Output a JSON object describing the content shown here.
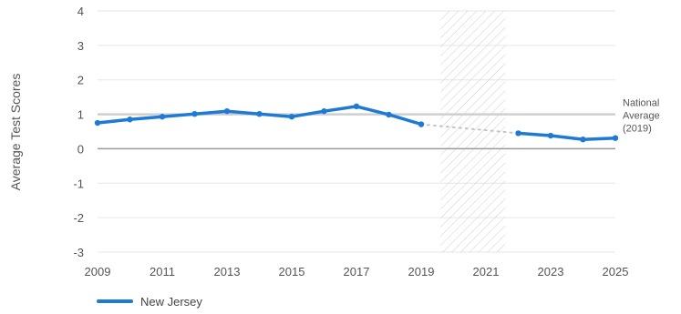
{
  "chart_data": {
    "type": "line",
    "ylabel": "Average Test Scores",
    "xlabel": "",
    "xlim": [
      2009,
      2025
    ],
    "ylim": [
      -3,
      4
    ],
    "x_ticks": [
      "2009",
      "2011",
      "2013",
      "2015",
      "2017",
      "2019",
      "2021",
      "2023",
      "2025"
    ],
    "y_ticks": [
      "4",
      "3",
      "2",
      "1",
      "0",
      "-1",
      "-2",
      "-3"
    ],
    "grid": true,
    "hatched_region": [
      2019.6,
      2021.6
    ],
    "reference_line": {
      "value": 1.0,
      "label_lines": [
        "National",
        "Average",
        "(2019)"
      ]
    },
    "series": [
      {
        "name": "New Jersey",
        "color": "#1f7ad6",
        "points": [
          {
            "x": 2009,
            "y": 0.75
          },
          {
            "x": 2010,
            "y": 0.85
          },
          {
            "x": 2011,
            "y": 0.93
          },
          {
            "x": 2012,
            "y": 1.01
          },
          {
            "x": 2013,
            "y": 1.09
          },
          {
            "x": 2014,
            "y": 1.01
          },
          {
            "x": 2015,
            "y": 0.93
          },
          {
            "x": 2016,
            "y": 1.09
          },
          {
            "x": 2017,
            "y": 1.23
          },
          {
            "x": 2018,
            "y": 0.99
          },
          {
            "x": 2019,
            "y": 0.71
          },
          {
            "x": 2022,
            "y": 0.45
          },
          {
            "x": 2023,
            "y": 0.38
          },
          {
            "x": 2024,
            "y": 0.27
          },
          {
            "x": 2025,
            "y": 0.31
          }
        ],
        "gap": {
          "from": 2019,
          "to": 2022
        }
      }
    ],
    "legend_position": "bottom-left"
  }
}
